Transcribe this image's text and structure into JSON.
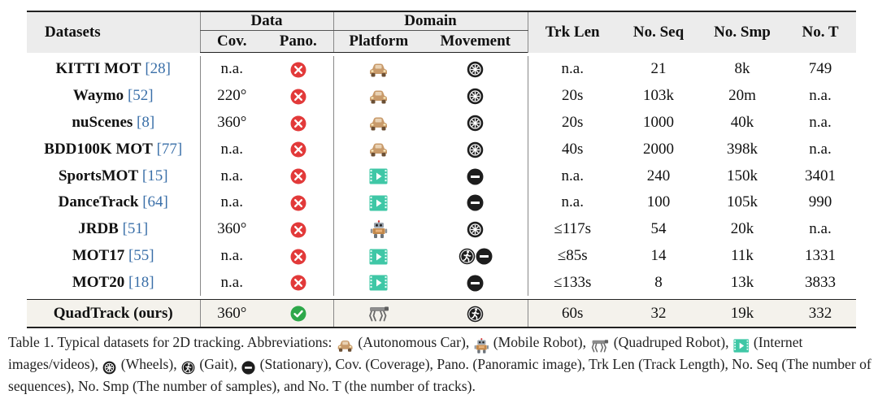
{
  "headers": {
    "datasets": "Datasets",
    "data": "Data",
    "cov": "Cov.",
    "pano": "Pano.",
    "domain": "Domain",
    "platform": "Platform",
    "movement": "Movement",
    "trk_len": "Trk Len",
    "no_seq": "No. Seq",
    "no_smp": "No. Smp",
    "no_t": "No. T"
  },
  "rows": [
    {
      "name": "KITTI MOT",
      "cite": "[28]",
      "cov": "n.a.",
      "pano": "no",
      "platform": "car",
      "movement": "wheels",
      "trk_len": "n.a.",
      "no_seq": "21",
      "no_smp": "8k",
      "no_t": "749"
    },
    {
      "name": "Waymo",
      "cite": "[52]",
      "cov": "220°",
      "pano": "no",
      "platform": "car",
      "movement": "wheels",
      "trk_len": "20s",
      "no_seq": "103k",
      "no_smp": "20m",
      "no_t": "n.a."
    },
    {
      "name": "nuScenes",
      "cite": "[8]",
      "cov": "360°",
      "pano": "no",
      "platform": "car",
      "movement": "wheels",
      "trk_len": "20s",
      "no_seq": "1000",
      "no_smp": "40k",
      "no_t": "n.a."
    },
    {
      "name": "BDD100K MOT",
      "cite": "[77]",
      "cov": "n.a.",
      "pano": "no",
      "platform": "car",
      "movement": "wheels",
      "trk_len": "40s",
      "no_seq": "2000",
      "no_smp": "398k",
      "no_t": "n.a."
    },
    {
      "name": "SportsMOT",
      "cite": "[15]",
      "cov": "n.a.",
      "pano": "no",
      "platform": "internet",
      "movement": "stationary",
      "trk_len": "n.a.",
      "no_seq": "240",
      "no_smp": "150k",
      "no_t": "3401"
    },
    {
      "name": "DanceTrack",
      "cite": "[64]",
      "cov": "n.a.",
      "pano": "no",
      "platform": "internet",
      "movement": "stationary",
      "trk_len": "n.a.",
      "no_seq": "100",
      "no_smp": "105k",
      "no_t": "990"
    },
    {
      "name": "JRDB",
      "cite": "[51]",
      "cov": "360°",
      "pano": "no",
      "platform": "robot",
      "movement": "wheels",
      "trk_len": "≤117s",
      "no_seq": "54",
      "no_smp": "20k",
      "no_t": "n.a."
    },
    {
      "name": "MOT17",
      "cite": "[55]",
      "cov": "n.a.",
      "pano": "no",
      "platform": "internet",
      "movement": "gait+stationary",
      "trk_len": "≤85s",
      "no_seq": "14",
      "no_smp": "11k",
      "no_t": "1331"
    },
    {
      "name": "MOT20",
      "cite": "[18]",
      "cov": "n.a.",
      "pano": "no",
      "platform": "internet",
      "movement": "stationary",
      "trk_len": "≤133s",
      "no_seq": "8",
      "no_smp": "13k",
      "no_t": "3833"
    }
  ],
  "ours": {
    "name": "QuadTrack (ours)",
    "cov": "360°",
    "pano": "yes",
    "platform": "quadruped",
    "movement": "gait",
    "trk_len": "60s",
    "no_seq": "32",
    "no_smp": "19k",
    "no_t": "332"
  },
  "caption": {
    "t1": "Table 1. Typical datasets for 2D tracking. Abbreviations: ",
    "t2": " (Autonomous Car), ",
    "t3": " (Mobile Robot), ",
    "t4": " (Quadruped Robot), ",
    "t5": " (Internet images/videos), ",
    "t6": " (Wheels), ",
    "t7": " (Gait), ",
    "t8": " (Stationary), Cov. (Coverage), Pano. (Panoramic image), Trk Len (Track Length), No. Seq (The number of sequences), No. Smp (The number of samples), and No. T (the number of tracks)."
  },
  "colors": {
    "cross": "#e23a3a",
    "check": "#2ea84a",
    "car": "#c89a6a",
    "internet": "#3fc7a6",
    "link": "#3a6fa8",
    "header_bg": "#ececec"
  }
}
